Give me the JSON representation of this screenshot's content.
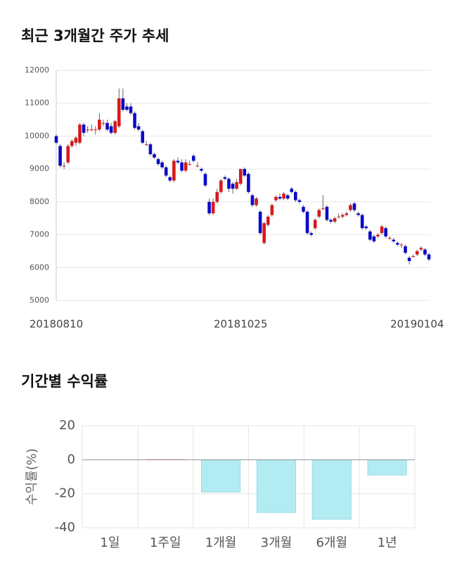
{
  "chart_data": [
    {
      "type": "candlestick",
      "title": "최근 3개월간 주가 추세",
      "categories": [
        "20180810",
        null,
        null,
        null,
        null,
        null,
        null,
        null,
        null,
        null,
        null,
        null,
        null,
        null,
        null,
        null,
        null,
        null,
        null,
        null,
        null,
        null,
        null,
        null,
        null,
        null,
        null,
        null,
        null,
        null,
        null,
        null,
        null,
        null,
        null,
        null,
        null,
        null,
        null,
        null,
        null,
        null,
        null,
        null,
        null,
        null,
        null,
        "20181025",
        null,
        null,
        null,
        null,
        null,
        null,
        null,
        null,
        null,
        null,
        null,
        null,
        null,
        null,
        null,
        null,
        null,
        null,
        null,
        null,
        null,
        null,
        null,
        null,
        null,
        null,
        null,
        null,
        null,
        null,
        null,
        null,
        null,
        null,
        null,
        null,
        null,
        null,
        null,
        null,
        null,
        null,
        null,
        null,
        "20190104",
        null,
        null,
        null,
        null
      ],
      "candles": [
        [
          10000,
          10050,
          9750,
          9800
        ],
        [
          9700,
          9750,
          9050,
          9100
        ],
        [
          9100,
          9200,
          9000,
          9100
        ],
        [
          9200,
          9750,
          9150,
          9700
        ],
        [
          9700,
          9900,
          9650,
          9850
        ],
        [
          9800,
          10000,
          9700,
          9950
        ],
        [
          9800,
          10400,
          9750,
          10350
        ],
        [
          10350,
          10400,
          10000,
          10100
        ],
        [
          10200,
          10300,
          10100,
          10200
        ],
        [
          10200,
          10350,
          10150,
          10200
        ],
        [
          10200,
          10300,
          10050,
          10200
        ],
        [
          10200,
          10700,
          10150,
          10500
        ],
        [
          10400,
          10500,
          10300,
          10400
        ],
        [
          10400,
          10500,
          10150,
          10200
        ],
        [
          10300,
          10400,
          10050,
          10100
        ],
        [
          10100,
          10500,
          10050,
          10450
        ],
        [
          10300,
          11450,
          10250,
          11150
        ],
        [
          11150,
          11450,
          10750,
          10800
        ],
        [
          10900,
          11000,
          10750,
          10800
        ],
        [
          10900,
          11000,
          10650,
          10700
        ],
        [
          10700,
          10750,
          10200,
          10250
        ],
        [
          10300,
          10400,
          10150,
          10200
        ],
        [
          10150,
          10200,
          9750,
          9800
        ],
        [
          9750,
          9850,
          9700,
          9750
        ],
        [
          9750,
          9800,
          9400,
          9450
        ],
        [
          9450,
          9500,
          9300,
          9350
        ],
        [
          9300,
          9350,
          9100,
          9150
        ],
        [
          9200,
          9250,
          9000,
          9050
        ],
        [
          9050,
          9100,
          8750,
          8800
        ],
        [
          8750,
          8800,
          8600,
          8650
        ],
        [
          8650,
          9300,
          8600,
          9250
        ],
        [
          9250,
          9350,
          9150,
          9200
        ],
        [
          9200,
          9300,
          8900,
          8950
        ],
        [
          8950,
          9300,
          8900,
          9200
        ],
        [
          9150,
          9250,
          9100,
          9150
        ],
        [
          9400,
          9450,
          9200,
          9250
        ],
        [
          9100,
          9200,
          9050,
          9100
        ],
        [
          9000,
          9050,
          8900,
          8950
        ],
        [
          8850,
          8900,
          8450,
          8500
        ],
        [
          8000,
          8100,
          7600,
          7650
        ],
        [
          7650,
          8100,
          7600,
          8000
        ],
        [
          8000,
          8400,
          7950,
          8300
        ],
        [
          8300,
          8700,
          8250,
          8650
        ],
        [
          8750,
          8800,
          8650,
          8700
        ],
        [
          8700,
          8750,
          8300,
          8400
        ],
        [
          8550,
          8600,
          8250,
          8400
        ],
        [
          8400,
          8700,
          8350,
          8600
        ],
        [
          8550,
          9000,
          8500,
          9000
        ],
        [
          9000,
          9050,
          8750,
          8800
        ],
        [
          8850,
          8900,
          8250,
          8300
        ],
        [
          8200,
          8250,
          7850,
          7900
        ],
        [
          7900,
          8150,
          7850,
          8100
        ],
        [
          7700,
          7750,
          7000,
          7050
        ],
        [
          6750,
          7400,
          6700,
          7350
        ],
        [
          7300,
          7600,
          7250,
          7550
        ],
        [
          7600,
          7950,
          7550,
          7900
        ],
        [
          8050,
          8200,
          8000,
          8150
        ],
        [
          8150,
          8250,
          8050,
          8100
        ],
        [
          8100,
          8300,
          8050,
          8250
        ],
        [
          8200,
          8250,
          8050,
          8100
        ],
        [
          8400,
          8450,
          8250,
          8300
        ],
        [
          8300,
          8350,
          8000,
          8050
        ],
        [
          8050,
          8100,
          7950,
          8000
        ],
        [
          7850,
          7900,
          7650,
          7700
        ],
        [
          7700,
          7750,
          7000,
          7050
        ],
        [
          7050,
          7100,
          6950,
          7000
        ],
        [
          7200,
          7500,
          7150,
          7450
        ],
        [
          7550,
          7800,
          7500,
          7750
        ],
        [
          7800,
          8200,
          7750,
          7800
        ],
        [
          7850,
          7900,
          7400,
          7450
        ],
        [
          7450,
          7500,
          7350,
          7400
        ],
        [
          7400,
          7550,
          7350,
          7500
        ],
        [
          7550,
          7650,
          7500,
          7550
        ],
        [
          7550,
          7650,
          7500,
          7600
        ],
        [
          7600,
          7700,
          7550,
          7650
        ],
        [
          7750,
          7950,
          7700,
          7900
        ],
        [
          7950,
          8000,
          7700,
          7750
        ],
        [
          7650,
          7700,
          7550,
          7600
        ],
        [
          7600,
          7650,
          7150,
          7200
        ],
        [
          7250,
          7300,
          7150,
          7200
        ],
        [
          7100,
          7150,
          6800,
          6850
        ],
        [
          6950,
          7000,
          6750,
          6800
        ],
        [
          6950,
          7050,
          6900,
          7000
        ],
        [
          7050,
          7300,
          7000,
          7250
        ],
        [
          7200,
          7250,
          6900,
          6950
        ],
        [
          6900,
          6950,
          6850,
          6900
        ],
        [
          6850,
          6900,
          6750,
          6800
        ],
        [
          6750,
          6800,
          6650,
          6700
        ],
        [
          6700,
          6750,
          6600,
          6700
        ],
        [
          6650,
          6700,
          6400,
          6450
        ],
        [
          6300,
          6350,
          6100,
          6200
        ],
        [
          6350,
          6400,
          6300,
          6350
        ],
        [
          6400,
          6550,
          6350,
          6500
        ],
        [
          6550,
          6650,
          6500,
          6600
        ],
        [
          6550,
          6600,
          6350,
          6400
        ],
        [
          6400,
          6450,
          6200,
          6250
        ]
      ],
      "up_color": "#d7191c",
      "down_color": "#0a0ac8",
      "ylim": [
        5000,
        12000
      ],
      "yticks": [
        5000,
        6000,
        7000,
        8000,
        9000,
        10000,
        11000,
        12000
      ],
      "grid": true
    },
    {
      "type": "bar",
      "title": "기간별 수익률",
      "ylabel": "수익률(%)",
      "categories": [
        "1일",
        "1주일",
        "1개월",
        "3개월",
        "6개월",
        "1년"
      ],
      "values": [
        0,
        0.1,
        -19,
        -31,
        -35,
        -9
      ],
      "color": "#b2ebf2",
      "positive_color": "#f4a6a6",
      "ylim": [
        -40,
        20
      ],
      "yticks": [
        -40,
        -20,
        0,
        20
      ],
      "grid": true
    }
  ]
}
